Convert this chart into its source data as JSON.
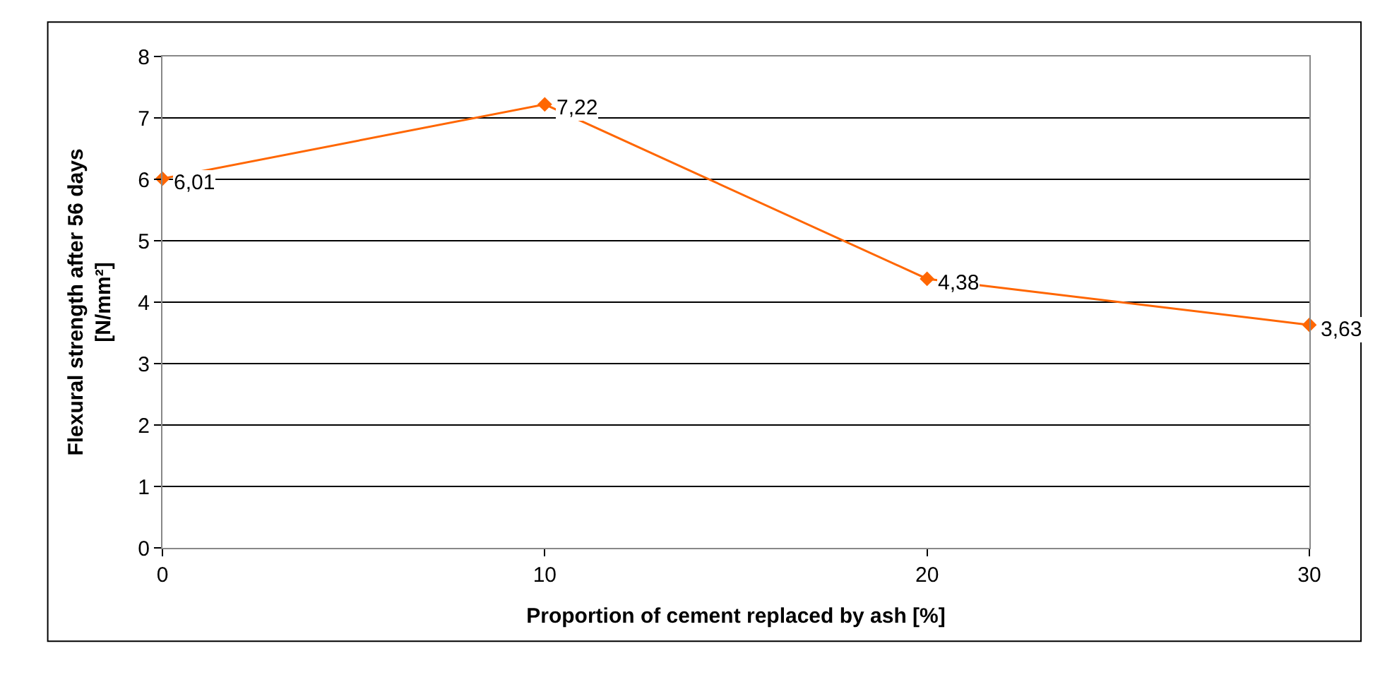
{
  "chart_data": {
    "type": "line",
    "xlabel": "Proportion of cement replaced by ash [%]",
    "ylabel": "Flexural strength after 56 days\n[N/mm²]",
    "x": [
      0,
      10,
      20,
      30
    ],
    "series": [
      {
        "color": "#ff6600",
        "values": [
          6.01,
          7.22,
          4.38,
          3.63
        ],
        "value_labels": [
          "6,01",
          "7,22",
          "4,38",
          "3,63"
        ]
      }
    ],
    "xlim": [
      0,
      30
    ],
    "xticks": [
      0,
      10,
      20,
      30
    ],
    "ylim": [
      0,
      8
    ],
    "yticks": [
      0,
      1,
      2,
      3,
      4,
      5,
      6,
      7,
      8
    ],
    "grid": "y",
    "marker": "diamond",
    "line_style": "solid"
  }
}
